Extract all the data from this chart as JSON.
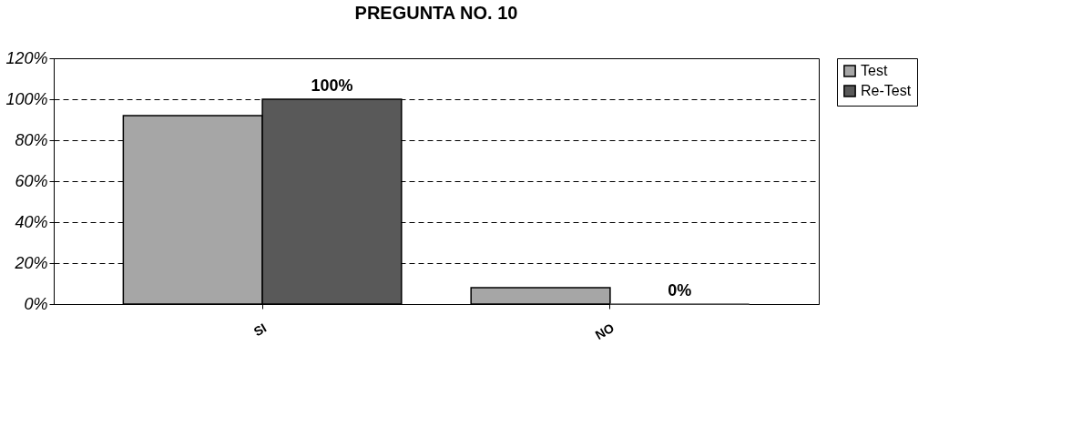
{
  "chart_data": {
    "type": "bar",
    "title": "PREGUNTA NO. 10",
    "categories": [
      "SI",
      "NO"
    ],
    "series": [
      {
        "name": "Test",
        "color": "#a6a6a6",
        "values": [
          92,
          8
        ]
      },
      {
        "name": "Re-Test",
        "color": "#595959",
        "values": [
          100,
          0
        ],
        "value_labels": [
          "100%",
          "0%"
        ]
      }
    ],
    "ylim": [
      0,
      120
    ],
    "yticks": [
      {
        "value": 0,
        "label": "0%"
      },
      {
        "value": 20,
        "label": "20%"
      },
      {
        "value": 40,
        "label": "40%"
      },
      {
        "value": 60,
        "label": "60%"
      },
      {
        "value": 80,
        "label": "80%"
      },
      {
        "value": 100,
        "label": "100%"
      },
      {
        "value": 120,
        "label": "120%"
      }
    ],
    "grid": "y",
    "legend": "right"
  }
}
